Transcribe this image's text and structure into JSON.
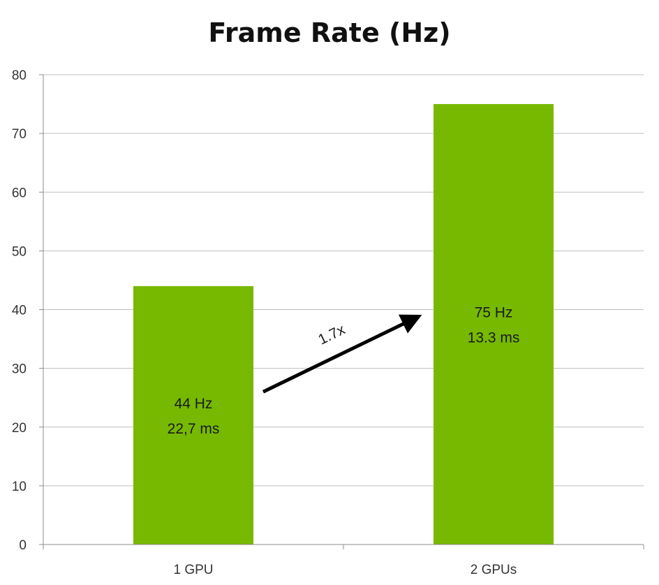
{
  "chart_data": {
    "type": "bar",
    "title": "Frame Rate (Hz)",
    "xlabel": "",
    "ylabel": "",
    "categories": [
      "1 GPU",
      "2 GPUs"
    ],
    "values": [
      44,
      75
    ],
    "bar_labels": [
      [
        "44 Hz",
        "22,7 ms"
      ],
      [
        "75 Hz",
        "13.3 ms"
      ]
    ],
    "ylim": [
      0,
      80
    ],
    "yticks": [
      0,
      10,
      20,
      30,
      40,
      50,
      60,
      70,
      80
    ],
    "grid": true,
    "legend": "none",
    "annotation": {
      "text": "1.7x",
      "from_category": "1 GPU",
      "to_category": "2 GPUs"
    },
    "bar_color": "#76b900"
  }
}
